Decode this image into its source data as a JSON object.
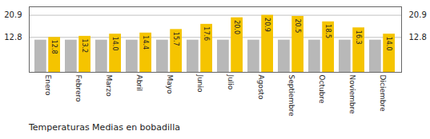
{
  "chart_data": {
    "type": "bar",
    "title": "Temperaturas Medias en bobadilla",
    "categories": [
      "Enero",
      "Febrero",
      "Marzo",
      "Abril",
      "Mayo",
      "Junio",
      "Julio",
      "Agosto",
      "Septiembre",
      "Octubre",
      "Noviembre",
      "Diciembre"
    ],
    "series": [
      {
        "color": "#B8B8B8",
        "values": [
          11.8,
          11.8,
          11.8,
          11.8,
          11.8,
          11.8,
          11.8,
          11.8,
          11.8,
          11.8,
          11.8,
          11.8
        ]
      },
      {
        "color": "#F5C400",
        "values": [
          12.8,
          13.2,
          14.0,
          14.4,
          15.7,
          17.6,
          20.0,
          20.9,
          20.5,
          18.5,
          16.3,
          14.0
        ],
        "data_labels": true,
        "value_labels": [
          "12.8",
          "13.2",
          "14.0",
          "14.4",
          "15.7",
          "17.6",
          "20.0",
          "20.9",
          "20.5",
          "18.5",
          "16.3",
          "14.0"
        ]
      }
    ],
    "ylim": [
      0,
      24
    ],
    "yticks": [
      12.8,
      20.9
    ],
    "y2lim": [
      0,
      24
    ],
    "y2ticks": [
      12.8,
      20.9
    ],
    "grid": true
  }
}
